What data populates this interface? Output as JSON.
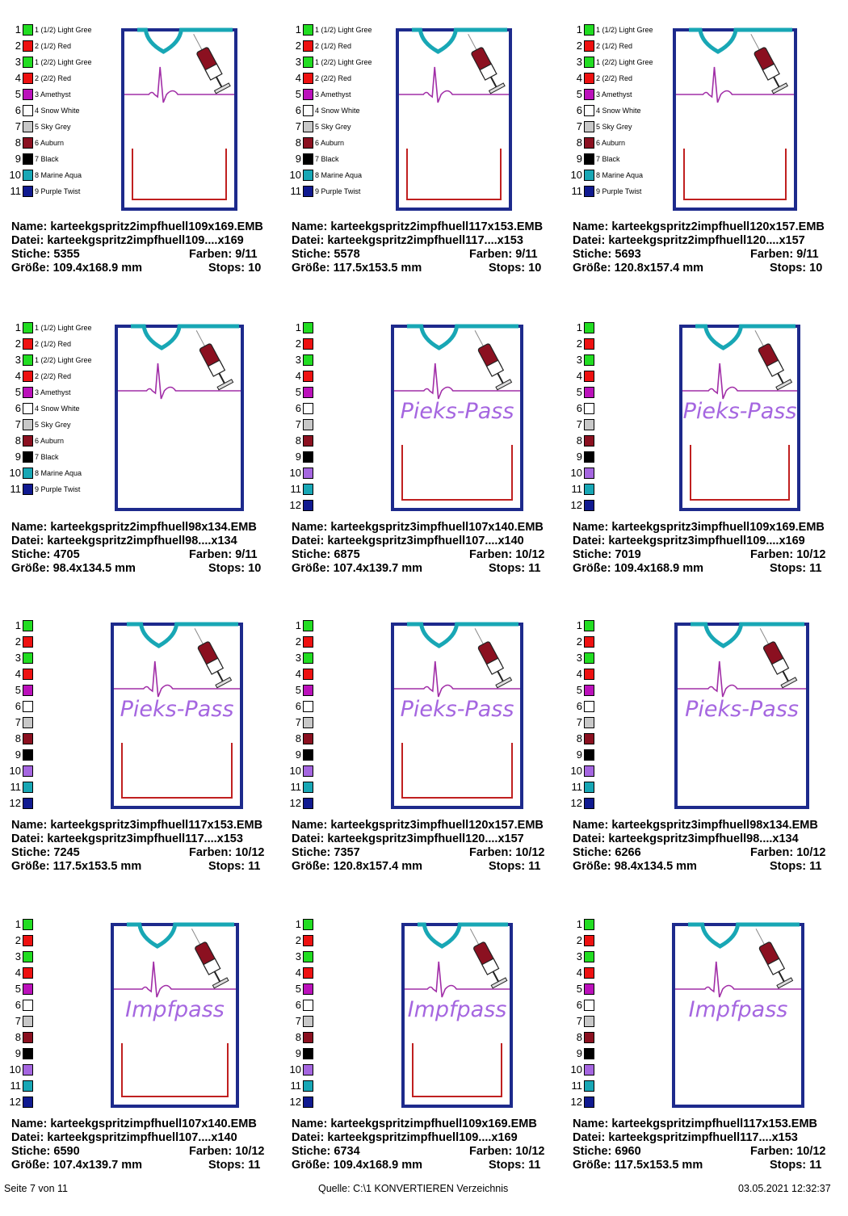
{
  "colors": {
    "outline": "#1d2a8c",
    "collar": "#18a7b5",
    "ecg": "#a12ea7",
    "pocket": "#c02020",
    "text_purple": "#a566e0"
  },
  "labels": {
    "name": "Name:",
    "datei": "Datei:",
    "stiche": "Stiche:",
    "farben": "Farben:",
    "groesse": "Größe:",
    "stops": "Stops:"
  },
  "palette_named": [
    {
      "num": "1",
      "name": "1 (1/2) Light Gree",
      "color": "#22dd22"
    },
    {
      "num": "2",
      "name": "2 (1/2) Red",
      "color": "#ee1111"
    },
    {
      "num": "3",
      "name": "1 (2/2) Light Gree",
      "color": "#22dd22"
    },
    {
      "num": "4",
      "name": "2 (2/2) Red",
      "color": "#ee1111"
    },
    {
      "num": "5",
      "name": "3 Amethyst",
      "color": "#bb11bb"
    },
    {
      "num": "6",
      "name": "4 Snow White",
      "color": "#ffffff"
    },
    {
      "num": "7",
      "name": "5 Sky Grey",
      "color": "#c8c8c8"
    },
    {
      "num": "8",
      "name": "6 Auburn",
      "color": "#8b1020"
    },
    {
      "num": "9",
      "name": "7 Black",
      "color": "#000000"
    },
    {
      "num": "10",
      "name": "8 Marine Aqua",
      "color": "#18a7b5"
    },
    {
      "num": "11",
      "name": "9 Purple Twist",
      "color": "#101a90"
    }
  ],
  "palette_numbered": [
    {
      "num": "1",
      "color": "#22dd22"
    },
    {
      "num": "2",
      "color": "#ee1111"
    },
    {
      "num": "3",
      "color": "#22dd22"
    },
    {
      "num": "4",
      "color": "#ee1111"
    },
    {
      "num": "5",
      "color": "#bb11bb"
    },
    {
      "num": "6",
      "color": "#ffffff"
    },
    {
      "num": "7",
      "color": "#c8c8c8"
    },
    {
      "num": "8",
      "color": "#8b1020"
    },
    {
      "num": "9",
      "color": "#000000"
    },
    {
      "num": "10",
      "color": "#a566e0"
    },
    {
      "num": "11",
      "color": "#18a7b5"
    },
    {
      "num": "12",
      "color": "#101a90"
    }
  ],
  "designs": [
    {
      "name": "karteekgspritz2impfhuell109x169.EMB",
      "datei": "karteekgspritz2impfhuell109....x169",
      "stiche": "5355",
      "farben": "9/11",
      "groesse": "109.4x168.9 mm",
      "stops": "10",
      "text": "",
      "palette": "named",
      "pocket": true
    },
    {
      "name": "karteekgspritz2impfhuell117x153.EMB",
      "datei": "karteekgspritz2impfhuell117....x153",
      "stiche": "5578",
      "farben": "9/11",
      "groesse": "117.5x153.5 mm",
      "stops": "10",
      "text": "",
      "palette": "named",
      "pocket": true
    },
    {
      "name": "karteekgspritz2impfhuell120x157.EMB",
      "datei": "karteekgspritz2impfhuell120....x157",
      "stiche": "5693",
      "farben": "9/11",
      "groesse": "120.8x157.4 mm",
      "stops": "10",
      "text": "",
      "palette": "named",
      "pocket": true
    },
    {
      "name": "karteekgspritz2impfhuell98x134.EMB",
      "datei": "karteekgspritz2impfhuell98....x134",
      "stiche": "4705",
      "farben": "9/11",
      "groesse": "98.4x134.5 mm",
      "stops": "10",
      "text": "",
      "palette": "named",
      "pocket": false
    },
    {
      "name": "karteekgspritz3impfhuell107x140.EMB",
      "datei": "karteekgspritz3impfhuell107....x140",
      "stiche": "6875",
      "farben": "10/12",
      "groesse": "107.4x139.7 mm",
      "stops": "11",
      "text": "Pieks-Pass",
      "palette": "numbered",
      "pocket": true
    },
    {
      "name": "karteekgspritz3impfhuell109x169.EMB",
      "datei": "karteekgspritz3impfhuell109....x169",
      "stiche": "7019",
      "farben": "10/12",
      "groesse": "109.4x168.9 mm",
      "stops": "11",
      "text": "Pieks-Pass",
      "palette": "numbered",
      "pocket": true
    },
    {
      "name": "karteekgspritz3impfhuell117x153.EMB",
      "datei": "karteekgspritz3impfhuell117....x153",
      "stiche": "7245",
      "farben": "10/12",
      "groesse": "117.5x153.5 mm",
      "stops": "11",
      "text": "Pieks-Pass",
      "palette": "numbered",
      "pocket": true
    },
    {
      "name": "karteekgspritz3impfhuell120x157.EMB",
      "datei": "karteekgspritz3impfhuell120....x157",
      "stiche": "7357",
      "farben": "10/12",
      "groesse": "120.8x157.4 mm",
      "stops": "11",
      "text": "Pieks-Pass",
      "palette": "numbered",
      "pocket": true
    },
    {
      "name": "karteekgspritz3impfhuell98x134.EMB",
      "datei": "karteekgspritz3impfhuell98....x134",
      "stiche": "6266",
      "farben": "10/12",
      "groesse": "98.4x134.5 mm",
      "stops": "11",
      "text": "Pieks-Pass",
      "palette": "numbered",
      "pocket": false
    },
    {
      "name": "karteekgspritzimpfhuell107x140.EMB",
      "datei": "karteekgspritzimpfhuell107....x140",
      "stiche": "6590",
      "farben": "10/12",
      "groesse": "107.4x139.7 mm",
      "stops": "11",
      "text": "Impfpass",
      "palette": "numbered",
      "pocket": true
    },
    {
      "name": "karteekgspritzimpfhuell109x169.EMB",
      "datei": "karteekgspritzimpfhuell109....x169",
      "stiche": "6734",
      "farben": "10/12",
      "groesse": "109.4x168.9 mm",
      "stops": "11",
      "text": "Impfpass",
      "palette": "numbered",
      "pocket": true
    },
    {
      "name": "karteekgspritzimpfhuell117x153.EMB",
      "datei": "karteekgspritzimpfhuell117....x153",
      "stiche": "6960",
      "farben": "10/12",
      "groesse": "117.5x153.5 mm",
      "stops": "11",
      "text": "Impfpass",
      "palette": "numbered",
      "pocket": false
    }
  ],
  "footer": {
    "page": "Seite 7 von 11",
    "source": "Quelle: C:\\1 KONVERTIEREN Verzeichnis",
    "timestamp": "03.05.2021 12:32:37"
  }
}
